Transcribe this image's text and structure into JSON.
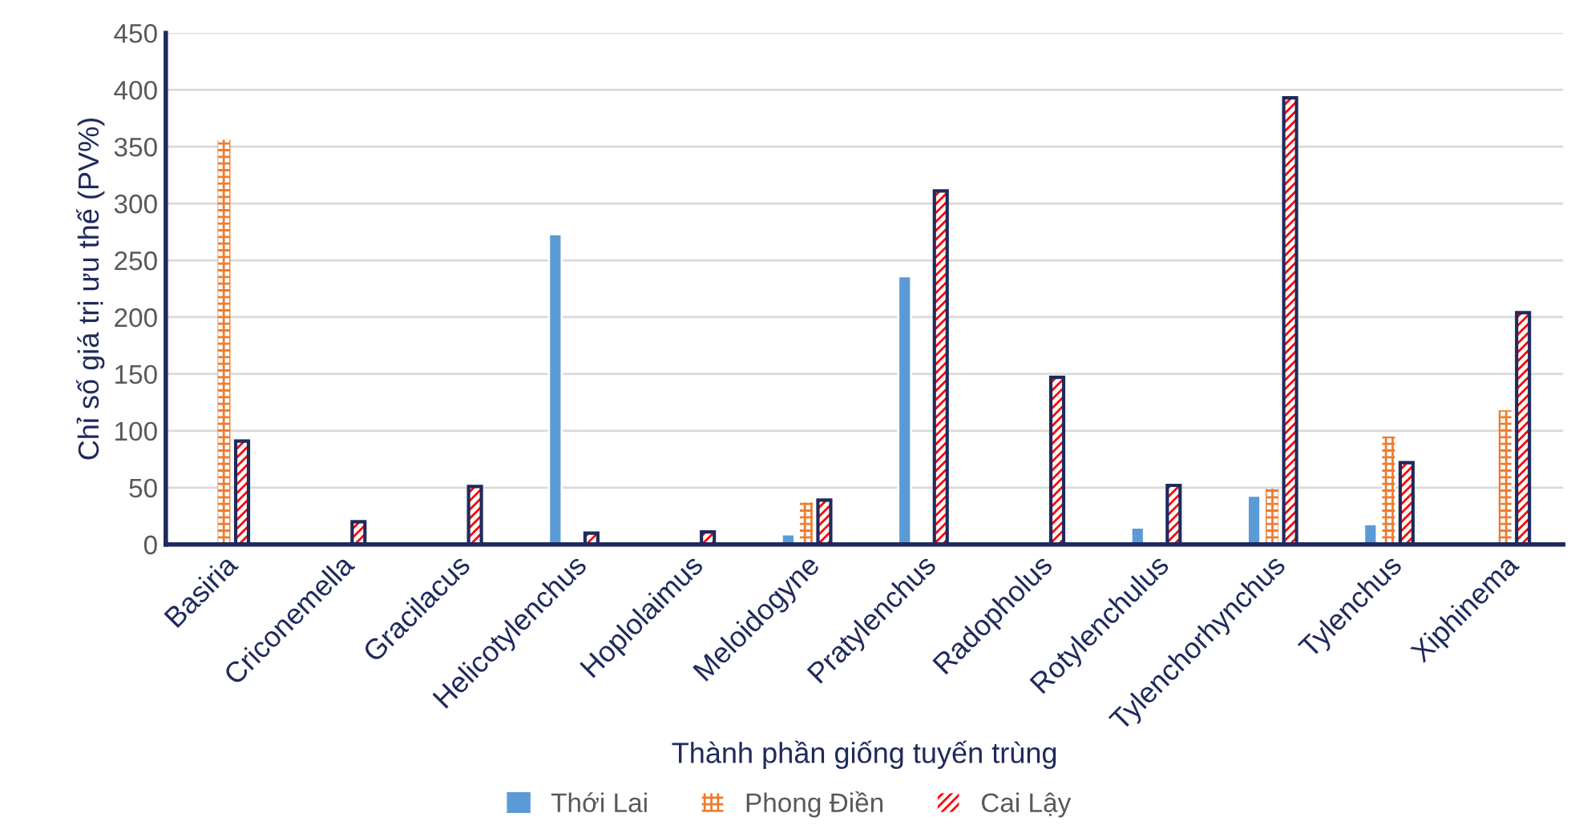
{
  "chart_data": {
    "type": "bar",
    "xlabel": "Thành phần giống tuyến trùng",
    "ylabel": "Chỉ số giá trị ưu thế (PV%)",
    "categories": [
      "Basiria",
      "Criconemella",
      "Gracilacus",
      "Helicotylenchus",
      "Hoplolaimus",
      "Meloidogyne",
      "Pratylenchus",
      "Radopholus",
      "Rotylenchulus",
      "Tylenchorhynchus",
      "Tylenchus",
      "Xiphinema"
    ],
    "series": [
      {
        "name": "Thới Lai",
        "color": "#5b9bd5",
        "values": [
          null,
          null,
          null,
          273,
          null,
          9,
          236,
          null,
          15,
          43,
          18,
          null
        ]
      },
      {
        "name": "Phong Điền",
        "color": "#ed7d31",
        "values": [
          356,
          null,
          null,
          null,
          null,
          37,
          null,
          null,
          null,
          49,
          95,
          118
        ]
      },
      {
        "name": "Cai Lậy",
        "color": "#ff0000",
        "values": [
          91,
          20,
          51,
          10,
          11,
          39,
          311,
          147,
          52,
          393,
          72,
          204
        ]
      }
    ],
    "ylim": [
      0,
      450
    ],
    "yticks": [
      0,
      50,
      100,
      150,
      200,
      250,
      300,
      350,
      400,
      450
    ],
    "grid": "y",
    "legend": "bottom"
  }
}
